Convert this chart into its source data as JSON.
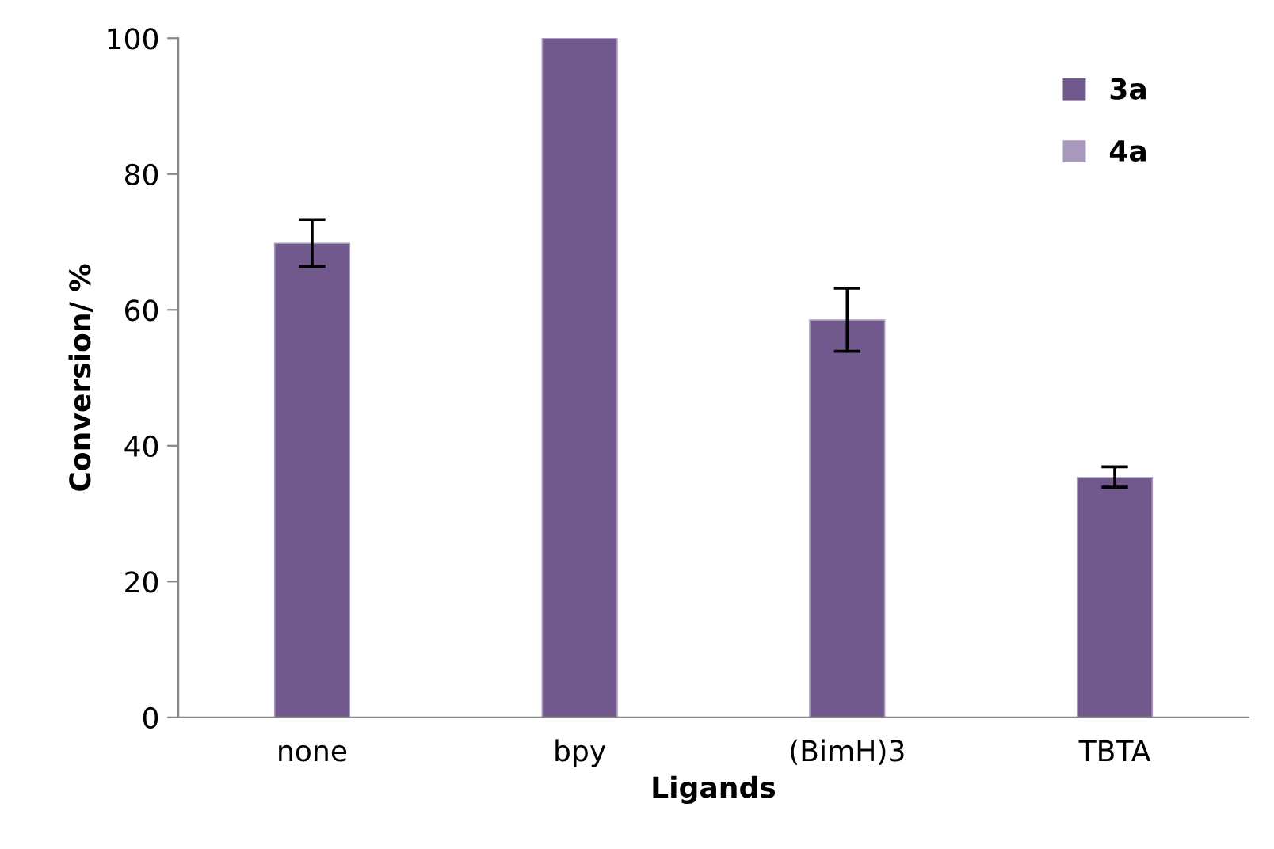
{
  "chart_data": {
    "type": "bar",
    "xlabel": "Ligands",
    "ylabel": "Conversion/ %",
    "categories": [
      "none",
      "bpy",
      "(BimH)3",
      "TBTA"
    ],
    "series": [
      {
        "name": "3a",
        "color": "#72598d",
        "values": [
          69.8,
          100,
          58.5,
          35.3
        ],
        "errors": [
          [
            66.4,
            73.3
          ],
          null,
          [
            53.9,
            63.2
          ],
          [
            33.9,
            36.9
          ]
        ]
      },
      {
        "name": "4a",
        "color": "#a898bc",
        "values": [
          null,
          null,
          null,
          null
        ]
      }
    ],
    "ylim": [
      0,
      100
    ],
    "yticks": [
      0,
      20,
      40,
      60,
      80,
      100
    ],
    "grid": false,
    "legend": "top right"
  }
}
